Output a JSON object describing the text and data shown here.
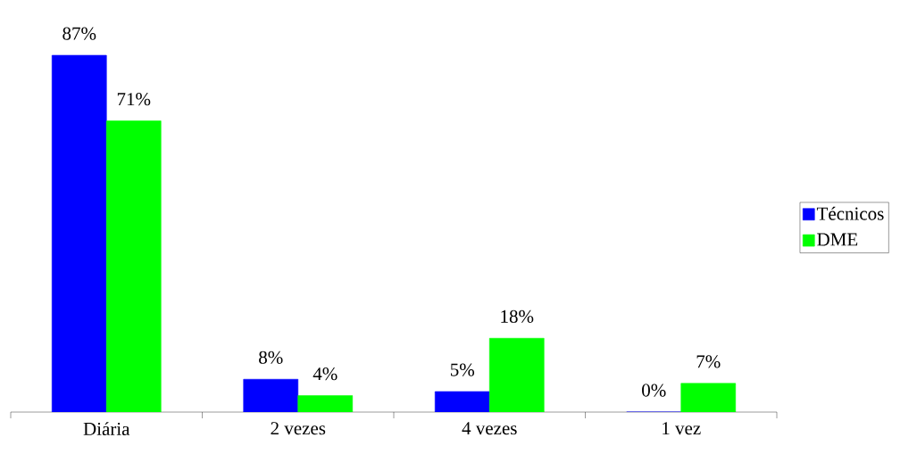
{
  "chart_data": {
    "type": "bar",
    "categories": [
      "Diária",
      "2 vezes",
      "4 vezes",
      "1 vez"
    ],
    "series": [
      {
        "name": "Técnicos",
        "color": "#0000ff",
        "values": [
          87,
          8,
          5,
          0
        ],
        "value_labels": [
          "87%",
          "8%",
          "5%",
          "0%"
        ]
      },
      {
        "name": "DME",
        "color": "#00ff00",
        "values": [
          71,
          4,
          18,
          7
        ],
        "value_labels": [
          "71%",
          "4%",
          "18%",
          "7%"
        ]
      }
    ],
    "legend": "right"
  }
}
